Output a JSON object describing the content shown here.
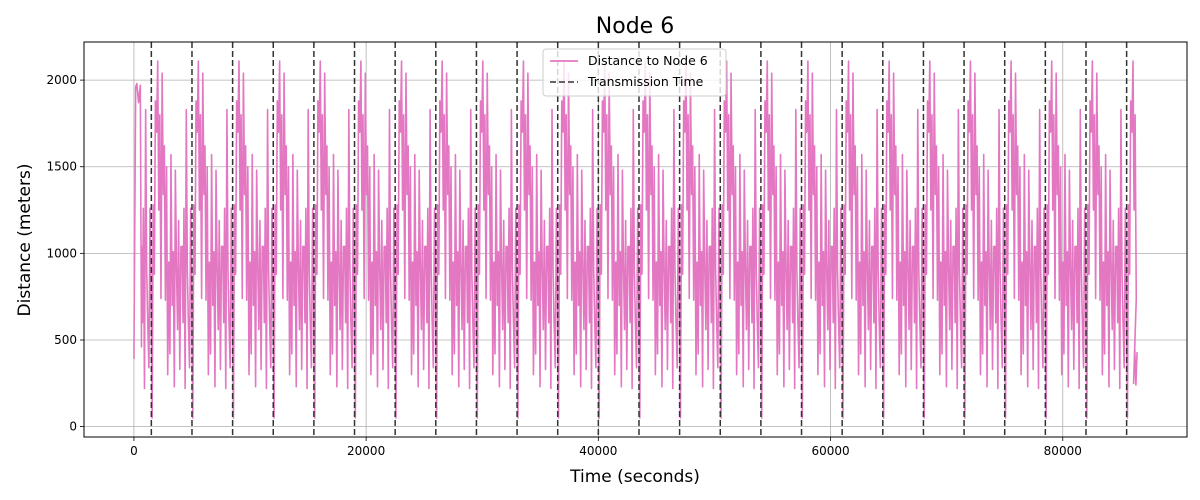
{
  "chart_data": {
    "type": "line",
    "title": "Node 6",
    "xlabel": "Time (seconds)",
    "ylabel": "Distance (meters)",
    "xlim": [
      -4300,
      90700
    ],
    "ylim": [
      -60,
      2220
    ],
    "x_ticks": [
      0,
      20000,
      40000,
      60000,
      80000
    ],
    "x_tick_labels": [
      "0",
      "20000",
      "40000",
      "60000",
      "80000"
    ],
    "y_ticks": [
      0,
      500,
      1000,
      1500,
      2000
    ],
    "y_tick_labels": [
      "0",
      "500",
      "1000",
      "1500",
      "2000"
    ],
    "grid": true,
    "legend_position": "top-center",
    "series": [
      {
        "name": "Distance to Node 6",
        "color": "#e377c2",
        "style": "solid",
        "cycle_length": 3500,
        "x_range": [
          0,
          86400
        ],
        "start_segment": {
          "x": [
            0,
            150,
            250,
            400,
            550,
            650
          ],
          "y": [
            390,
            1960,
            1980,
            1870,
            1970,
            460
          ]
        },
        "cycle_profile": {
          "phase_offsets": [
            0,
            80,
            160,
            260,
            360,
            450,
            540,
            640,
            740,
            830,
            920,
            1010,
            1110,
            1200,
            1300,
            1400,
            1490,
            1580,
            1680,
            1780,
            1880,
            1970,
            2060,
            2160,
            2260,
            2350,
            2450,
            2540,
            2640,
            2740,
            2830,
            2920,
            3020,
            3110,
            3200,
            3300,
            3400
          ],
          "y": [
            1040,
            600,
            1260,
            220,
            1830,
            900,
            600,
            340,
            1260,
            760,
            50,
            1280,
            880,
            1880,
            1700,
            2110,
            1250,
            1800,
            740,
            2040,
            1340,
            1620,
            730,
            1500,
            300,
            950,
            420,
            1570,
            700,
            1010,
            230,
            1480,
            900,
            560,
            1190,
            330,
            1040
          ]
        }
      },
      {
        "name": "Transmission Time",
        "color": "#333333",
        "style": "dashed",
        "vertical_lines_x": [
          1500,
          5000,
          8500,
          12000,
          15500,
          19000,
          22500,
          26000,
          29500,
          33000,
          36500,
          40000,
          43500,
          47000,
          50500,
          54000,
          57500,
          61000,
          64500,
          68000,
          71500,
          75000,
          78500,
          82000,
          85500
        ]
      }
    ]
  }
}
